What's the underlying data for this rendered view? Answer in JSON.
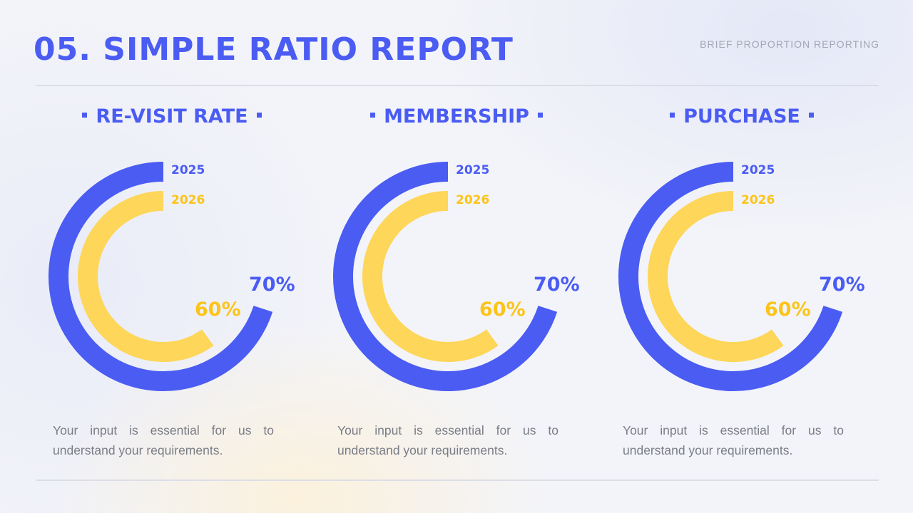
{
  "header": {
    "title": "05. SIMPLE RATIO REPORT",
    "subtitle": "BRIEF PROPORTION REPORTING"
  },
  "colors": {
    "blue": "#4a5cf2",
    "yellow": "#fdd65a",
    "yellow_text": "#fcc419"
  },
  "chart_data": [
    {
      "type": "radial-bar",
      "title": "RE-VISIT RATE",
      "series": [
        {
          "name": "2025",
          "value": 70,
          "label": "70%"
        },
        {
          "name": "2026",
          "value": 60,
          "label": "60%"
        }
      ],
      "description": "Your input is essential for us to understand your requirements."
    },
    {
      "type": "radial-bar",
      "title": "MEMBERSHIP",
      "series": [
        {
          "name": "2025",
          "value": 70,
          "label": "70%"
        },
        {
          "name": "2026",
          "value": 60,
          "label": "60%"
        }
      ],
      "description": "Your input is essential for us to understand your requirements."
    },
    {
      "type": "radial-bar",
      "title": "PURCHASE",
      "series": [
        {
          "name": "2025",
          "value": 70,
          "label": "70%"
        },
        {
          "name": "2026",
          "value": 60,
          "label": "60%"
        }
      ],
      "description": "Your input is essential for us to understand your requirements."
    }
  ]
}
